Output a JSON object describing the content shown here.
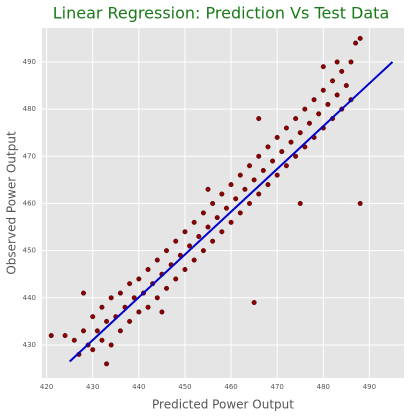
{
  "chart_data": {
    "type": "scatter",
    "title": "Linear Regression: Prediction Vs Test Data",
    "x_label": "Predicted Power Output",
    "y_label": "Observed Power Output",
    "xlim": [
      419,
      497.5
    ],
    "ylim": [
      423,
      497.2
    ],
    "xticks": [
      420,
      430,
      440,
      450,
      460,
      470,
      480,
      490
    ],
    "yticks": [
      430,
      440,
      450,
      460,
      470,
      480,
      490
    ],
    "grid": true,
    "color": "#8b0000",
    "x": [
      426,
      427,
      428,
      429,
      430,
      430,
      431,
      432,
      432,
      433,
      434,
      434,
      435,
      436,
      436,
      437,
      438,
      438,
      439,
      440,
      440,
      441,
      442,
      442,
      443,
      444,
      444,
      445,
      446,
      446,
      447,
      448,
      448,
      449,
      450,
      450,
      451,
      452,
      452,
      453,
      454,
      454,
      455,
      456,
      456,
      457,
      458,
      458,
      459,
      460,
      460,
      461,
      462,
      462,
      463,
      464,
      464,
      465,
      466,
      466,
      467,
      468,
      468,
      469,
      470,
      470,
      471,
      472,
      472,
      473,
      474,
      474,
      475,
      476,
      476,
      477,
      478,
      478,
      479,
      480,
      480,
      481,
      482,
      482,
      483,
      484,
      484,
      485,
      486,
      487,
      488,
      486,
      483,
      480,
      465,
      488,
      475,
      466,
      424,
      421,
      428,
      433,
      455,
      445
    ],
    "values": [
      431,
      428,
      433,
      430,
      436,
      429,
      433,
      438,
      431,
      435,
      430,
      440,
      436,
      433,
      441,
      438,
      435,
      443,
      440,
      437,
      444,
      441,
      438,
      446,
      443,
      440,
      448,
      445,
      442,
      450,
      447,
      444,
      452,
      449,
      446,
      454,
      451,
      448,
      456,
      453,
      450,
      458,
      455,
      452,
      460,
      457,
      454,
      462,
      459,
      456,
      464,
      461,
      458,
      466,
      463,
      460,
      468,
      465,
      462,
      470,
      467,
      464,
      472,
      469,
      466,
      474,
      471,
      468,
      476,
      473,
      470,
      478,
      475,
      472,
      480,
      477,
      474,
      482,
      479,
      476,
      484,
      481,
      478,
      486,
      483,
      480,
      488,
      485,
      490,
      494,
      495,
      482,
      490,
      489,
      439,
      460,
      460,
      478,
      432,
      432,
      441,
      426,
      463,
      437
    ],
    "fit_line": {
      "type": "line",
      "color": "#0000cd",
      "x": [
        425,
        495
      ],
      "values": [
        426.5,
        490
      ]
    }
  }
}
